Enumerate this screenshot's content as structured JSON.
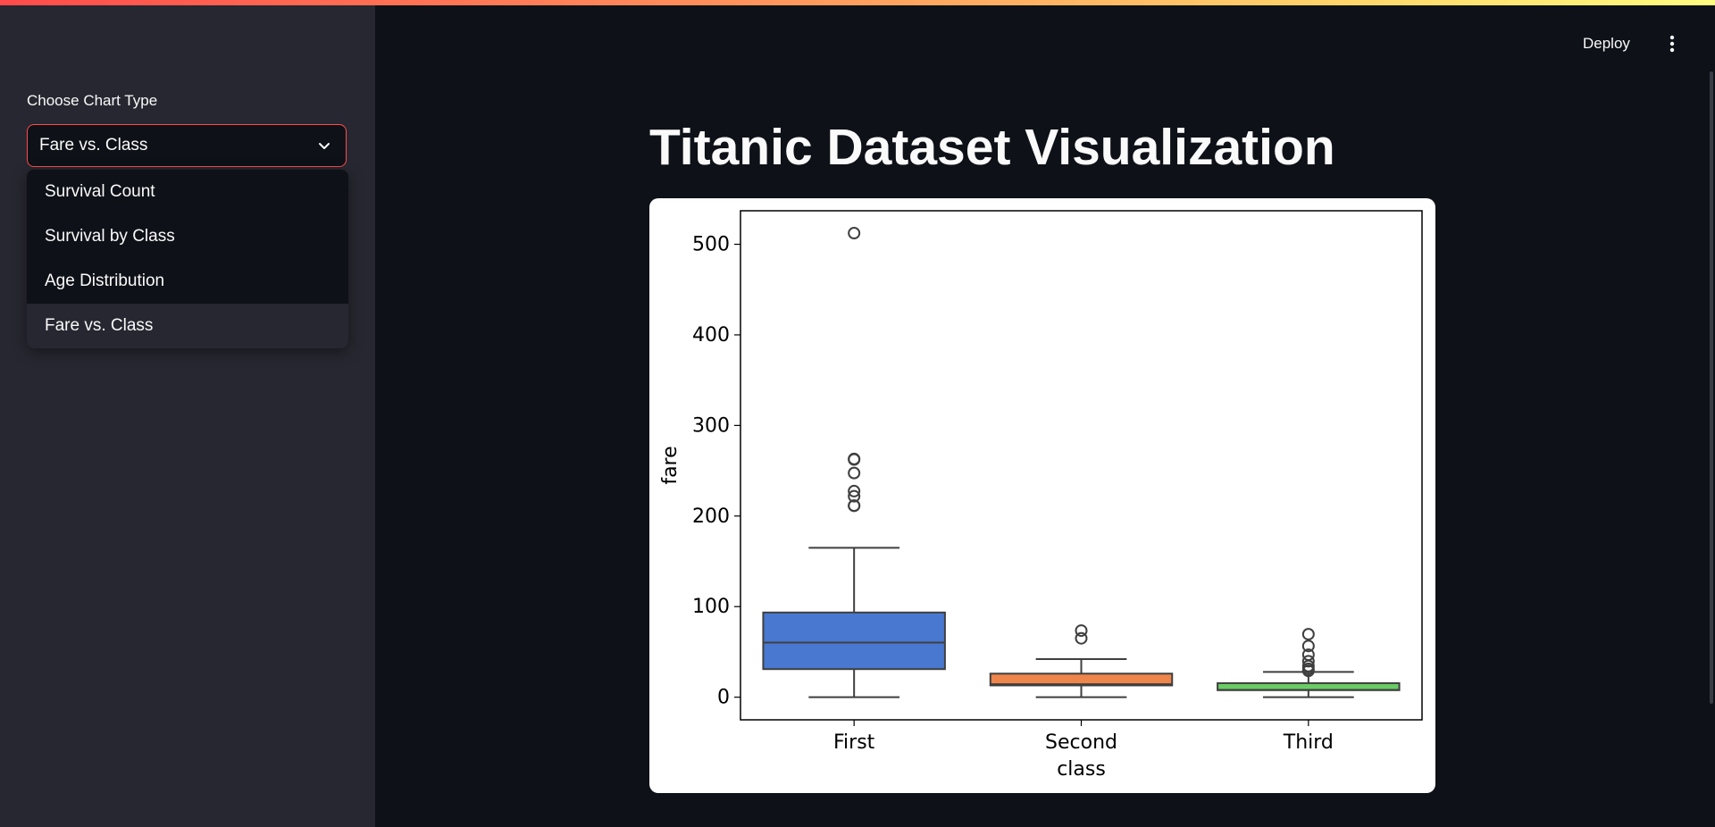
{
  "header": {
    "deploy_label": "Deploy",
    "menu_icon": "vertical-ellipsis-icon"
  },
  "sidebar": {
    "select_label": "Choose Chart Type",
    "selected_value": "Fare vs. Class",
    "options": [
      {
        "label": "Survival Count"
      },
      {
        "label": "Survival by Class"
      },
      {
        "label": "Age Distribution"
      },
      {
        "label": "Fare vs. Class"
      }
    ]
  },
  "main": {
    "title": "Titanic Dataset Visualization"
  },
  "chart_data": {
    "type": "box",
    "xlabel": "class",
    "ylabel": "fare",
    "categories": [
      "First",
      "Second",
      "Third"
    ],
    "ylim": [
      -25,
      537
    ],
    "yticks": [
      0,
      100,
      200,
      300,
      400,
      500
    ],
    "grid": false,
    "boxes": [
      {
        "category": "First",
        "color": "#4878d0",
        "whisker_low": 0,
        "q1": 31,
        "median": 60.3,
        "q3": 93.5,
        "whisker_high": 164.9,
        "outliers": [
          512.3,
          263,
          262.4,
          247.5,
          227.5,
          221.8,
          211.5,
          211.3
        ]
      },
      {
        "category": "Second",
        "color": "#ee854a",
        "whisker_low": 0,
        "q1": 13,
        "median": 14.3,
        "q3": 26,
        "whisker_high": 42,
        "outliers": [
          73.5,
          65
        ]
      },
      {
        "category": "Third",
        "color": "#6acc64",
        "whisker_low": 0,
        "q1": 7.75,
        "median": 8.05,
        "q3": 15.5,
        "whisker_high": 27.9,
        "outliers": [
          69.55,
          56.5,
          46.9,
          39.7,
          34.4,
          31.3,
          29.1
        ]
      }
    ]
  }
}
